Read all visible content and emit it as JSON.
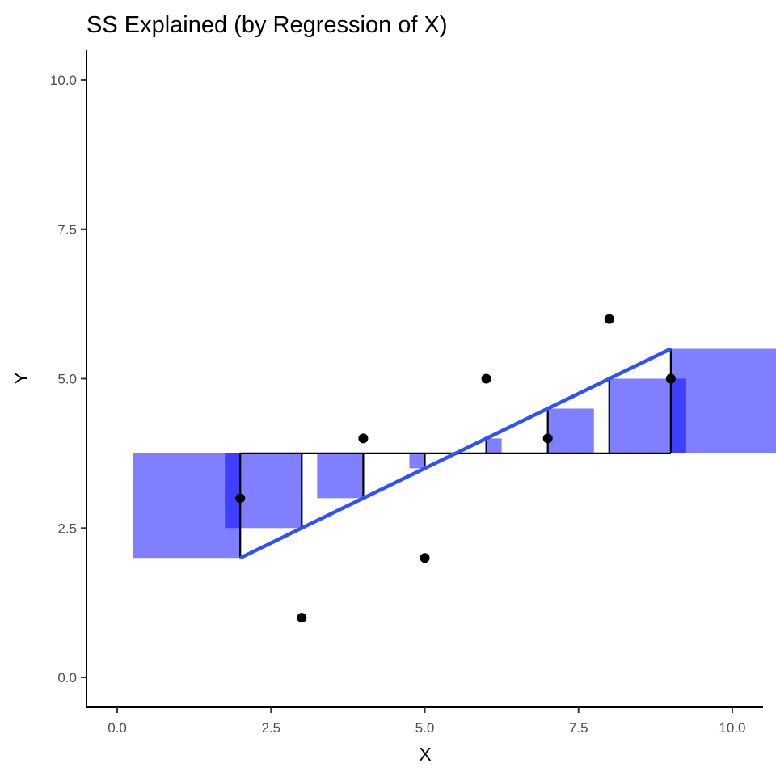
{
  "chart_data": {
    "type": "scatter",
    "title": "SS Explained (by Regression of X)",
    "xlabel": "X",
    "ylabel": "Y",
    "xlim": [
      -0.5,
      10.5
    ],
    "ylim": [
      -0.5,
      10.5
    ],
    "x_ticks": [
      0,
      2.5,
      5,
      7.5,
      10
    ],
    "y_ticks": [
      0,
      2.5,
      5,
      7.5,
      10
    ],
    "x_tick_labels": [
      "0.0",
      "2.5",
      "5.0",
      "7.5",
      "10.0"
    ],
    "y_tick_labels": [
      "0.0",
      "2.5",
      "5.0",
      "7.5",
      "10.0"
    ],
    "grid": false,
    "points": [
      {
        "x": 2,
        "y": 3
      },
      {
        "x": 3,
        "y": 1
      },
      {
        "x": 4,
        "y": 4
      },
      {
        "x": 5,
        "y": 2
      },
      {
        "x": 6,
        "y": 5
      },
      {
        "x": 7,
        "y": 4
      },
      {
        "x": 8,
        "y": 6
      },
      {
        "x": 9,
        "y": 5
      }
    ],
    "mean_y": 3.75,
    "regression_line": {
      "x": [
        2,
        9
      ],
      "y": [
        2,
        5.5
      ],
      "color": "#3050f8"
    },
    "fitted_values": [
      2,
      2.5,
      3,
      3.5,
      4,
      4.5,
      5,
      5.5
    ],
    "square_color": "#0000ff",
    "square_opacity": 0.5
  }
}
